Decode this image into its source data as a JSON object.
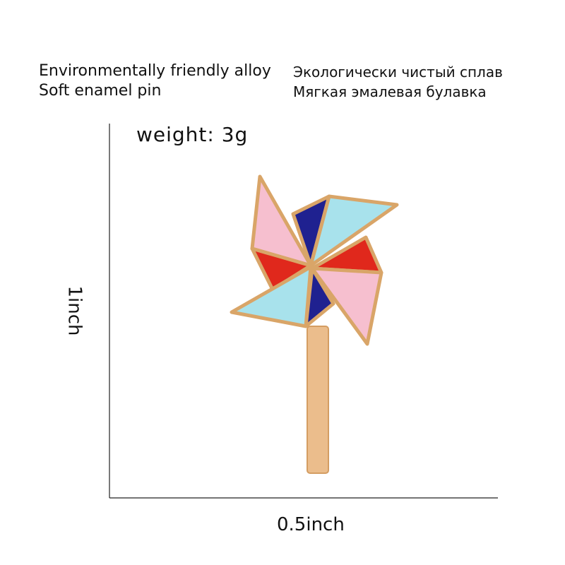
{
  "header": {
    "left": [
      "Environmentally friendly alloy",
      "Soft enamel pin"
    ],
    "right": [
      "Экологически чистый сплав",
      "Мягкая эмалевая булавка"
    ]
  },
  "weight": "weight: 3g",
  "height_label": "1inch",
  "width_label": "0.5inch"
}
